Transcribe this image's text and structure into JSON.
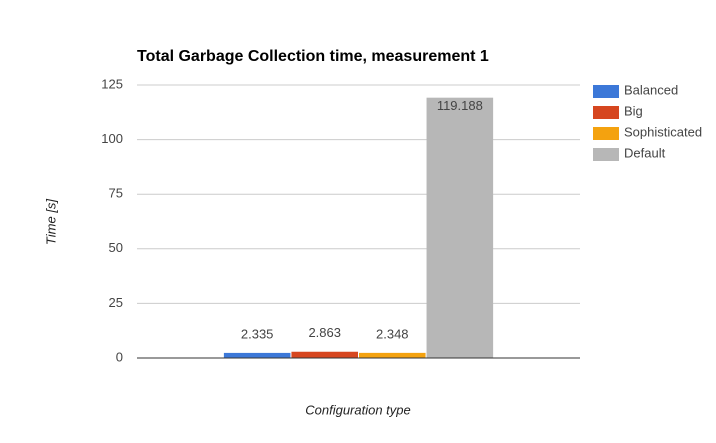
{
  "chart_data": {
    "type": "bar",
    "title": "Total Garbage Collection time, measurement 1",
    "x_label": "Configuration type",
    "y_label": "Time [s]",
    "categories": [
      null
    ],
    "series": [
      {
        "name": "Balanced",
        "color": "#3c78d8",
        "values": [
          2.335
        ]
      },
      {
        "name": "Big",
        "color": "#d6461f",
        "values": [
          2.863
        ]
      },
      {
        "name": "Sophisticated",
        "color": "#f4a20f",
        "values": [
          2.348
        ]
      },
      {
        "name": "Default",
        "color": "#b7b7b7",
        "values": [
          119.188
        ]
      }
    ],
    "ylim": [
      0,
      125
    ],
    "yticks": [
      0,
      25,
      50,
      75,
      100,
      125
    ],
    "grid": true,
    "legend": "right"
  }
}
